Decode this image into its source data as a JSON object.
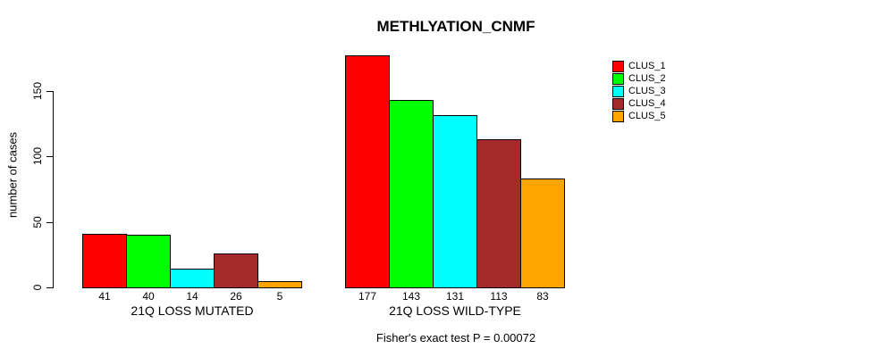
{
  "chart_data": {
    "type": "bar",
    "title": "METHLYATION_CNMF",
    "ylabel": "number of cases",
    "xlabel": "",
    "yticks": [
      0,
      50,
      100,
      150
    ],
    "ylim": [
      0,
      177
    ],
    "grid": false,
    "legend_position": "right",
    "series_names": [
      "CLUS_1",
      "CLUS_2",
      "CLUS_3",
      "CLUS_4",
      "CLUS_5"
    ],
    "series_colors": [
      "#FF0000",
      "#00FF00",
      "#00FFFF",
      "#A52A2A",
      "#FFA500"
    ],
    "groups": [
      {
        "label": "21Q LOSS MUTATED",
        "values": [
          41,
          40,
          14,
          26,
          5
        ]
      },
      {
        "label": "21Q LOSS WILD-TYPE",
        "values": [
          177,
          143,
          131,
          113,
          83
        ]
      }
    ],
    "bar_value_labels": true,
    "annotation": "Fisher's exact test P = 0.00072"
  }
}
